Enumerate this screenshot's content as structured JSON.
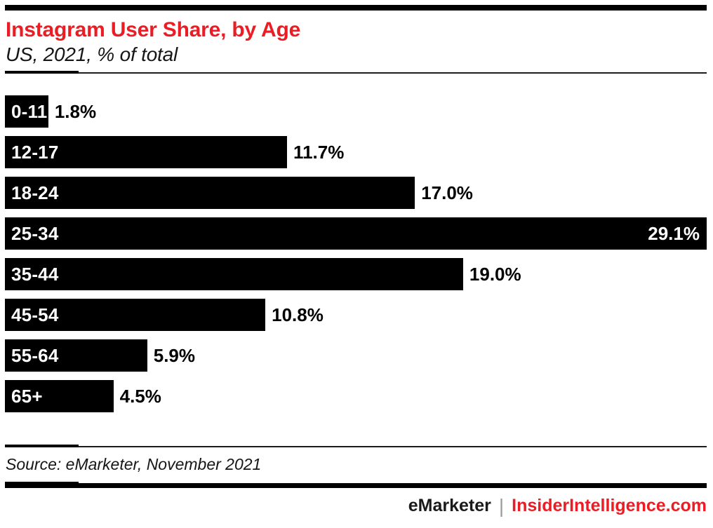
{
  "header": {
    "title": "Instagram User Share, by Age",
    "subtitle": "US, 2021, % of total"
  },
  "chart_data": {
    "type": "bar",
    "orientation": "horizontal",
    "title": "Instagram User Share, by Age",
    "subtitle": "US, 2021, % of total",
    "categories": [
      "0-11",
      "12-17",
      "18-24",
      "25-34",
      "35-44",
      "45-54",
      "55-64",
      "65+"
    ],
    "values": [
      1.8,
      11.7,
      17.0,
      29.1,
      19.0,
      10.8,
      5.9,
      4.5
    ],
    "value_labels": [
      "1.8%",
      "11.7%",
      "17.0%",
      "29.1%",
      "19.0%",
      "10.8%",
      "5.9%",
      "4.5%"
    ],
    "unit": "% of total",
    "xlim": [
      0,
      29.1
    ],
    "grid": false,
    "legend": false,
    "bar_color": "#000000",
    "category_label_position": "inside-left",
    "value_label_position": "outside-right, inside-right for max bar"
  },
  "footer": {
    "source": "Source: eMarketer, November 2021",
    "brand_left": "eMarketer",
    "brand_separator": "|",
    "brand_right": "InsiderIntelligence.com"
  },
  "colors": {
    "accent_red": "#EC1C24",
    "bar_black": "#000000",
    "text_black": "#111111",
    "separator_gray": "#9A9A9A",
    "background": "#FFFFFF"
  }
}
